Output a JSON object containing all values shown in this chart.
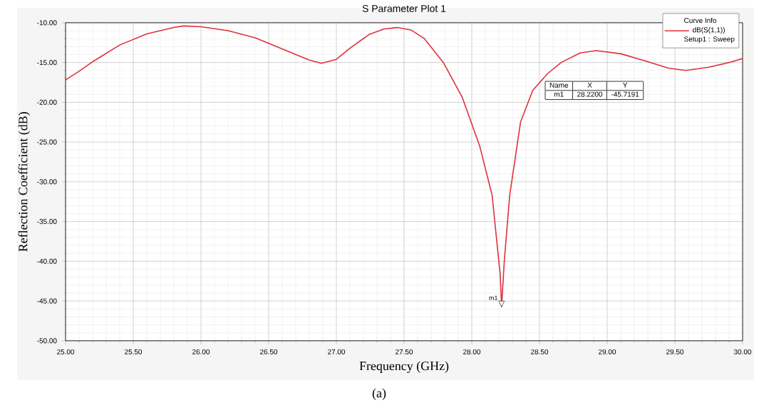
{
  "chart_data": {
    "type": "line",
    "title": "S Parameter Plot 1",
    "xlabel": "Frequency (GHz)",
    "ylabel": "Reflection Coefficient (dB)",
    "legend_title": "Curve Info",
    "xlim": [
      25,
      30
    ],
    "ylim": [
      -50,
      -10
    ],
    "xticks": [
      {
        "value": 25,
        "label": "25.00"
      },
      {
        "value": 25.5,
        "label": "25.50"
      },
      {
        "value": 26,
        "label": "26.00"
      },
      {
        "value": 26.5,
        "label": "26.50"
      },
      {
        "value": 27,
        "label": "27.00"
      },
      {
        "value": 27.5,
        "label": "27.50"
      },
      {
        "value": 28,
        "label": "28.00"
      },
      {
        "value": 28.5,
        "label": "28.50"
      },
      {
        "value": 29,
        "label": "29.00"
      },
      {
        "value": 29.5,
        "label": "29.50"
      },
      {
        "value": 30,
        "label": "30.00"
      }
    ],
    "yticks": [
      {
        "value": -10,
        "label": "-10.00"
      },
      {
        "value": -15,
        "label": "-15.00"
      },
      {
        "value": -20,
        "label": "-20.00"
      },
      {
        "value": -25,
        "label": "-25.00"
      },
      {
        "value": -30,
        "label": "-30.00"
      },
      {
        "value": -35,
        "label": "-35.00"
      },
      {
        "value": -40,
        "label": "-40.00"
      },
      {
        "value": -45,
        "label": "-45.00"
      },
      {
        "value": -50,
        "label": "-50.00"
      }
    ],
    "grid": true,
    "legend": "top right",
    "marker": "none",
    "line_style": "solid",
    "x": [
      25.0,
      25.1,
      25.2,
      25.4,
      25.6,
      25.8,
      25.87,
      26.0,
      26.2,
      26.4,
      26.5,
      26.6,
      26.8,
      26.89,
      27.0,
      27.1,
      27.24,
      27.35,
      27.45,
      27.55,
      27.65,
      27.79,
      27.93,
      28.06,
      28.15,
      28.21,
      28.22,
      28.24,
      28.28,
      28.36,
      28.45,
      28.56,
      28.66,
      28.8,
      28.92,
      29.1,
      29.3,
      29.45,
      29.58,
      29.75,
      29.9,
      30.0
    ],
    "series": [
      {
        "name": "dB(S(1,1))",
        "color": "#e0303c",
        "values": [
          -17.2,
          -16.1,
          -14.9,
          -12.8,
          -11.4,
          -10.6,
          -10.4,
          -10.5,
          -11.0,
          -11.9,
          -12.6,
          -13.3,
          -14.7,
          -15.1,
          -14.6,
          -13.2,
          -11.5,
          -10.8,
          -10.6,
          -10.9,
          -12.0,
          -15.0,
          -19.4,
          -25.6,
          -31.7,
          -41.7,
          -45.7191,
          -40.0,
          -31.7,
          -22.5,
          -18.5,
          -16.4,
          -15.0,
          -13.8,
          -13.5,
          -13.9,
          -14.9,
          -15.7,
          -16.0,
          -15.6,
          -15.0,
          -14.5
        ]
      }
    ],
    "annotations": [
      "Setup1 : Sweep",
      {
        "text": "m1",
        "x": 28.22,
        "y": -45.7191
      },
      "Name",
      "X",
      "Y",
      "m1",
      "28.2200",
      "-45.7191",
      "(a)"
    ]
  }
}
